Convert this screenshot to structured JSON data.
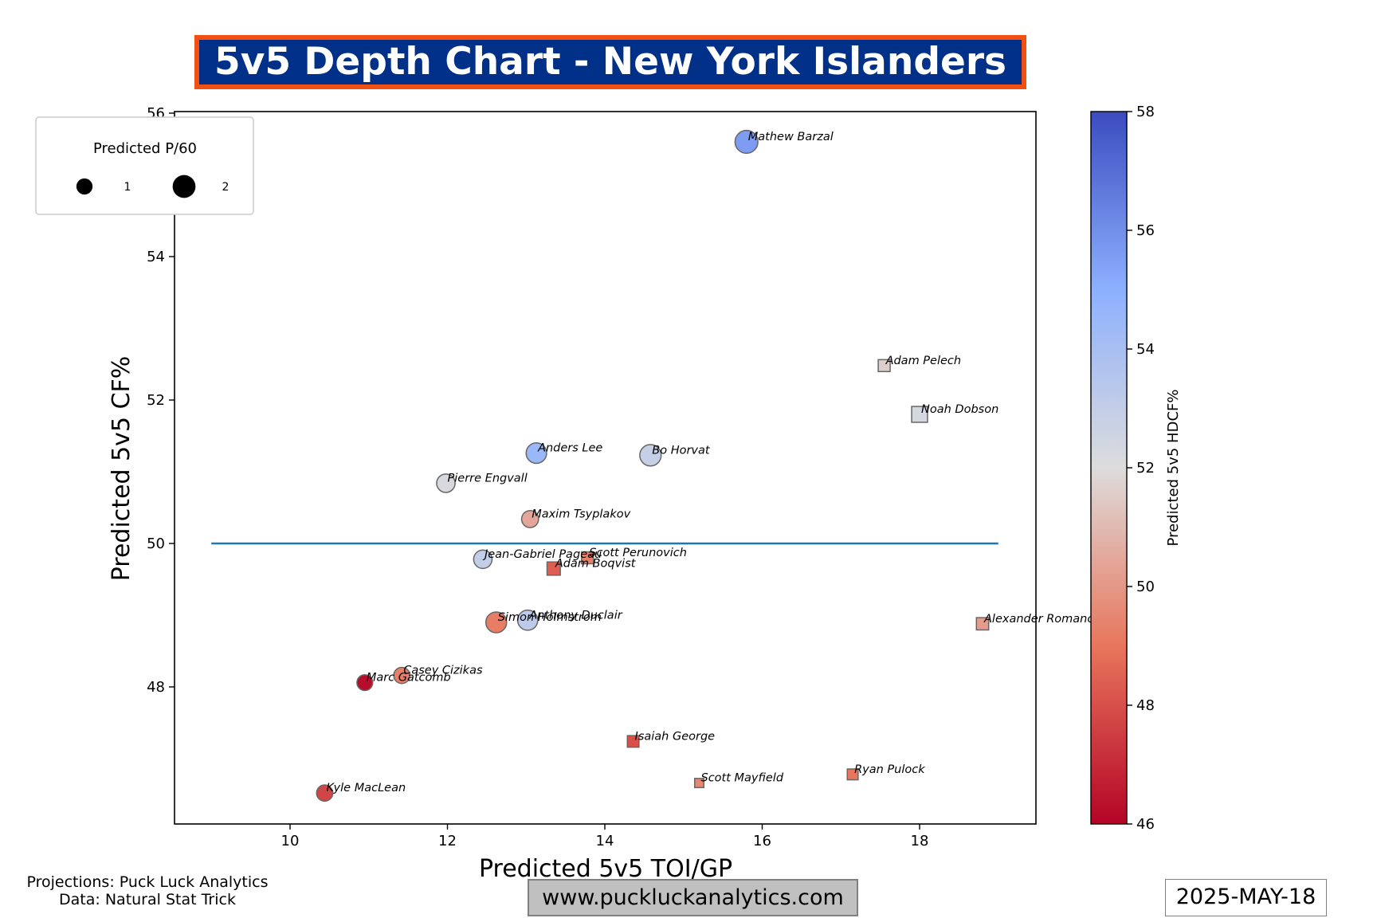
{
  "title": "5v5 Depth Chart - New York Islanders",
  "footer": {
    "credit_line1": "Projections: Puck Luck Analytics",
    "credit_line2": "Data: Natural Stat Trick",
    "website": "www.puckluckanalytics.com",
    "date": "2025-MAY-18"
  },
  "colors": {
    "title_background": "#003087",
    "title_border": "#f24f12",
    "reference_line": "#1f77b4",
    "colormap_low": "#b40426",
    "colormap_mid": "#dddcdc",
    "colormap_high": "#3b4cc0"
  },
  "chart_data": {
    "type": "scatter",
    "xlabel": "Predicted 5v5 TOI/GP",
    "ylabel": "Predicted 5v5 CF%",
    "xlim": [
      8.5,
      19.5
    ],
    "ylim": [
      46.1,
      56.05
    ],
    "x_ticks": [
      10,
      12,
      14,
      16,
      18
    ],
    "y_ticks": [
      48,
      50,
      52,
      54,
      56
    ],
    "reference_line": {
      "y": 50,
      "x_from": 9,
      "x_to": 19
    },
    "colorbar": {
      "label": "Predicted 5v5 HDCF%",
      "min": 46,
      "max": 58,
      "ticks": [
        46,
        48,
        50,
        52,
        54,
        56,
        58
      ]
    },
    "size_legend": {
      "title": "Predicted P/60",
      "placement": "upper-left",
      "entries": [
        {
          "label": "1",
          "value": 1
        },
        {
          "label": "2",
          "value": 2
        }
      ]
    },
    "points": [
      {
        "name": "Mathew Barzal",
        "x": 15.8,
        "y": 55.6,
        "p60": 2.0,
        "hdcf": 55.6,
        "marker": "circle"
      },
      {
        "name": "Adam Pelech",
        "x": 17.55,
        "y": 52.48,
        "p60": 0.85,
        "hdcf": 51.6,
        "marker": "square"
      },
      {
        "name": "Noah Dobson",
        "x": 18.0,
        "y": 51.8,
        "p60": 1.5,
        "hdcf": 52.3,
        "marker": "square"
      },
      {
        "name": "Anders Lee",
        "x": 13.13,
        "y": 51.26,
        "p60": 1.6,
        "hdcf": 54.5,
        "marker": "circle"
      },
      {
        "name": "Bo Horvat",
        "x": 14.58,
        "y": 51.23,
        "p60": 1.75,
        "hdcf": 52.9,
        "marker": "circle"
      },
      {
        "name": "Pierre Engvall",
        "x": 11.98,
        "y": 50.84,
        "p60": 1.3,
        "hdcf": 52.2,
        "marker": "circle"
      },
      {
        "name": "Maxim Tsyplakov",
        "x": 13.05,
        "y": 50.34,
        "p60": 1.1,
        "hdcf": 50.4,
        "marker": "circle"
      },
      {
        "name": "Jean-Gabriel Pageau",
        "x": 12.45,
        "y": 49.78,
        "p60": 1.3,
        "hdcf": 53.0,
        "marker": "circle"
      },
      {
        "name": "Scott Perunovich",
        "x": 13.78,
        "y": 49.8,
        "p60": 0.85,
        "hdcf": 49.3,
        "marker": "square"
      },
      {
        "name": "Adam Boqvist",
        "x": 13.35,
        "y": 49.65,
        "p60": 1.05,
        "hdcf": 48.4,
        "marker": "square"
      },
      {
        "name": "Simon Holmstrom",
        "x": 12.62,
        "y": 48.9,
        "p60": 1.65,
        "hdcf": 49.2,
        "marker": "circle"
      },
      {
        "name": "Anthony Duclair",
        "x": 13.02,
        "y": 48.93,
        "p60": 1.55,
        "hdcf": 53.2,
        "marker": "circle"
      },
      {
        "name": "Alexander Romanov",
        "x": 18.8,
        "y": 48.88,
        "p60": 0.9,
        "hdcf": 50.1,
        "marker": "square"
      },
      {
        "name": "Casey Cizikas",
        "x": 11.42,
        "y": 48.16,
        "p60": 1.0,
        "hdcf": 49.3,
        "marker": "circle"
      },
      {
        "name": "Marc Gatcomb",
        "x": 10.95,
        "y": 48.06,
        "p60": 0.95,
        "hdcf": 46.2,
        "marker": "circle"
      },
      {
        "name": "Isaiah George",
        "x": 14.36,
        "y": 47.24,
        "p60": 0.8,
        "hdcf": 48.0,
        "marker": "square"
      },
      {
        "name": "Ryan Pulock",
        "x": 17.15,
        "y": 46.78,
        "p60": 0.7,
        "hdcf": 49.0,
        "marker": "square"
      },
      {
        "name": "Scott Mayfield",
        "x": 15.2,
        "y": 46.66,
        "p60": 0.5,
        "hdcf": 49.5,
        "marker": "square"
      },
      {
        "name": "Kyle MacLean",
        "x": 10.44,
        "y": 46.52,
        "p60": 1.0,
        "hdcf": 47.7,
        "marker": "circle"
      }
    ]
  }
}
